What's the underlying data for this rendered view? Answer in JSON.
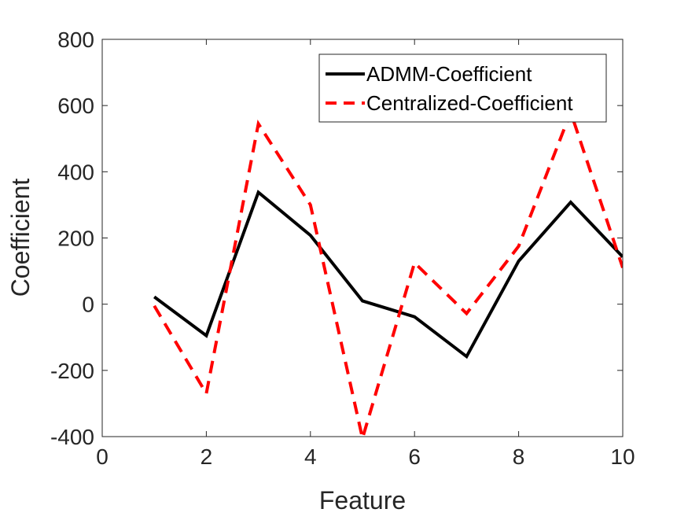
{
  "chart_data": {
    "type": "line",
    "title": "",
    "xlabel": "Feature",
    "ylabel": "Coefficient",
    "xlim": [
      0,
      10
    ],
    "ylim": [
      -400,
      800
    ],
    "x_ticks": [
      0,
      2,
      4,
      6,
      8,
      10
    ],
    "y_ticks": [
      -400,
      -200,
      0,
      200,
      400,
      600,
      800
    ],
    "grid": false,
    "legend": {
      "position": "top-right",
      "boxed": true
    },
    "x": [
      1,
      2,
      3,
      4,
      5,
      6,
      7,
      8,
      9,
      10
    ],
    "series": [
      {
        "name": "ADMM-Coefficient",
        "color": "#000000",
        "style": "solid",
        "values": [
          22,
          -95,
          338,
          208,
          10,
          -38,
          -158,
          130,
          308,
          143
        ]
      },
      {
        "name": "Centralized-Coefficient",
        "color": "#ff0000",
        "style": "dashed",
        "values": [
          -5,
          -270,
          545,
          300,
          -405,
          125,
          -28,
          175,
          580,
          110
        ]
      }
    ]
  }
}
